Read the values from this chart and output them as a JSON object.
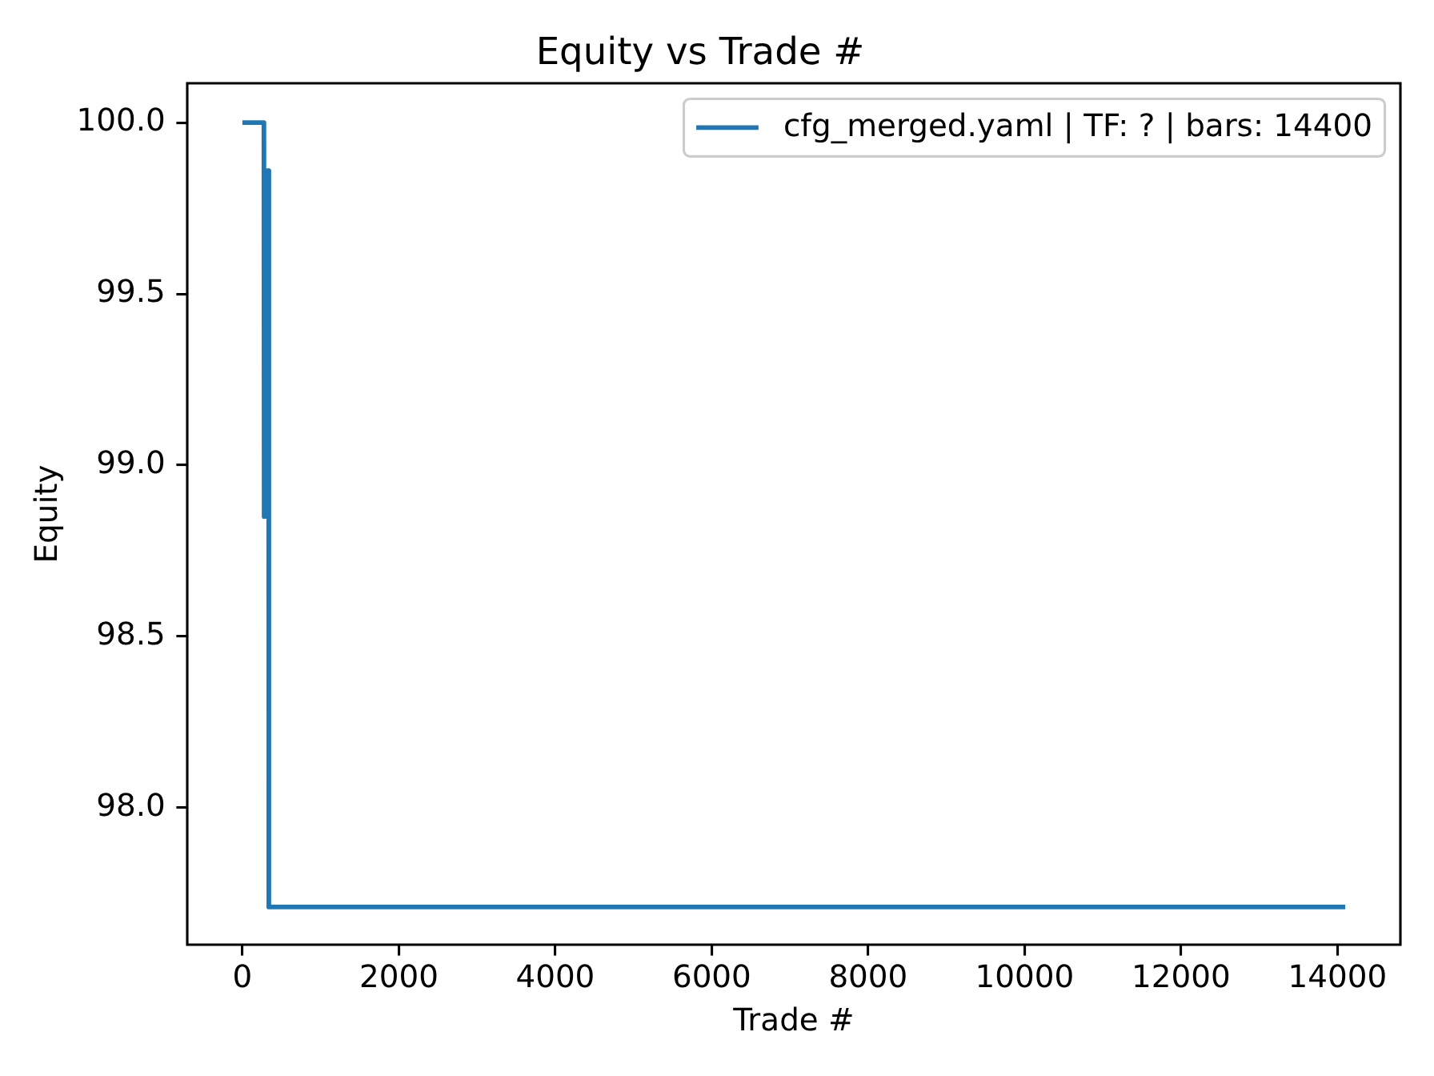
{
  "chart_data": {
    "type": "line",
    "title": "Equity vs Trade #",
    "xlabel": "Trade #",
    "ylabel": "Equity",
    "x": [
      0,
      275,
      278,
      300,
      318,
      336,
      338,
      14100
    ],
    "series": [
      {
        "name": "cfg_merged.yaml | TF: ? | bars: 14400",
        "color": "#1f77b4",
        "values": [
          100.0,
          100.0,
          98.85,
          99.86,
          98.85,
          99.86,
          97.71,
          97.71
        ]
      }
    ],
    "xlim": [
      -705,
      14805
    ],
    "ylim": [
      97.6,
      100.115
    ],
    "xticks": [
      0,
      2000,
      4000,
      6000,
      8000,
      10000,
      12000,
      14000
    ],
    "yticks": [
      {
        "value": 98,
        "label": "98.0"
      },
      {
        "value": 98.5,
        "label": "98.5"
      },
      {
        "value": 99,
        "label": "99.0"
      },
      {
        "value": 99.5,
        "label": "99.5"
      },
      {
        "value": 100,
        "label": "100.0"
      }
    ],
    "grid": false,
    "legend": "top right",
    "marker": "none",
    "line_style": "solid"
  }
}
